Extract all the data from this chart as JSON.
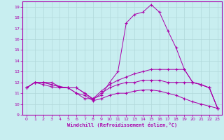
{
  "background_color": "#c8eef0",
  "line_color": "#aa00aa",
  "grid_color": "#b0d8da",
  "xlabel": "Windchill (Refroidissement éolien,°C)",
  "xlim": [
    -0.5,
    23.5
  ],
  "ylim": [
    9,
    19.5
  ],
  "yticks": [
    9,
    10,
    11,
    12,
    13,
    14,
    15,
    16,
    17,
    18,
    19
  ],
  "xticks": [
    0,
    1,
    2,
    3,
    4,
    5,
    6,
    7,
    8,
    9,
    10,
    11,
    12,
    13,
    14,
    15,
    16,
    17,
    18,
    19,
    20,
    21,
    22,
    23
  ],
  "curves": [
    {
      "x": [
        0,
        1,
        2,
        3,
        4,
        5,
        6,
        7,
        8,
        9,
        10,
        11,
        12,
        13,
        14,
        15,
        16,
        17,
        18,
        19,
        20,
        21,
        22,
        23
      ],
      "y": [
        11.5,
        12.0,
        12.0,
        12.0,
        11.6,
        11.5,
        11.0,
        10.5,
        10.5,
        10.8,
        12.0,
        13.0,
        17.5,
        18.3,
        18.5,
        19.2,
        18.5,
        16.8,
        15.2,
        13.2,
        12.0,
        11.8,
        11.5,
        9.6
      ]
    },
    {
      "x": [
        0,
        1,
        2,
        3,
        4,
        5,
        6,
        7,
        8,
        9,
        10,
        11,
        12,
        13,
        14,
        15,
        16,
        17,
        18,
        19,
        20,
        21,
        22,
        23
      ],
      "y": [
        11.5,
        12.0,
        12.0,
        11.8,
        11.6,
        11.5,
        11.5,
        11.0,
        10.5,
        11.2,
        11.8,
        12.2,
        12.5,
        12.8,
        13.0,
        13.2,
        13.2,
        13.2,
        13.2,
        13.2,
        12.0,
        11.8,
        11.5,
        9.6
      ]
    },
    {
      "x": [
        0,
        1,
        2,
        3,
        4,
        5,
        6,
        7,
        8,
        9,
        10,
        11,
        12,
        13,
        14,
        15,
        16,
        17,
        18,
        19,
        20,
        21,
        22,
        23
      ],
      "y": [
        11.5,
        12.0,
        12.0,
        11.8,
        11.6,
        11.5,
        11.5,
        11.0,
        10.4,
        11.0,
        11.5,
        11.8,
        12.0,
        12.0,
        12.2,
        12.2,
        12.2,
        12.0,
        12.0,
        12.0,
        12.0,
        11.8,
        11.5,
        9.6
      ]
    },
    {
      "x": [
        0,
        1,
        2,
        3,
        4,
        5,
        6,
        7,
        8,
        9,
        10,
        11,
        12,
        13,
        14,
        15,
        16,
        17,
        18,
        19,
        20,
        21,
        22,
        23
      ],
      "y": [
        11.5,
        12.0,
        11.8,
        11.6,
        11.5,
        11.5,
        11.0,
        10.8,
        10.3,
        10.5,
        10.8,
        11.0,
        11.0,
        11.2,
        11.3,
        11.3,
        11.2,
        11.0,
        10.8,
        10.5,
        10.2,
        10.0,
        9.8,
        9.6
      ]
    }
  ]
}
